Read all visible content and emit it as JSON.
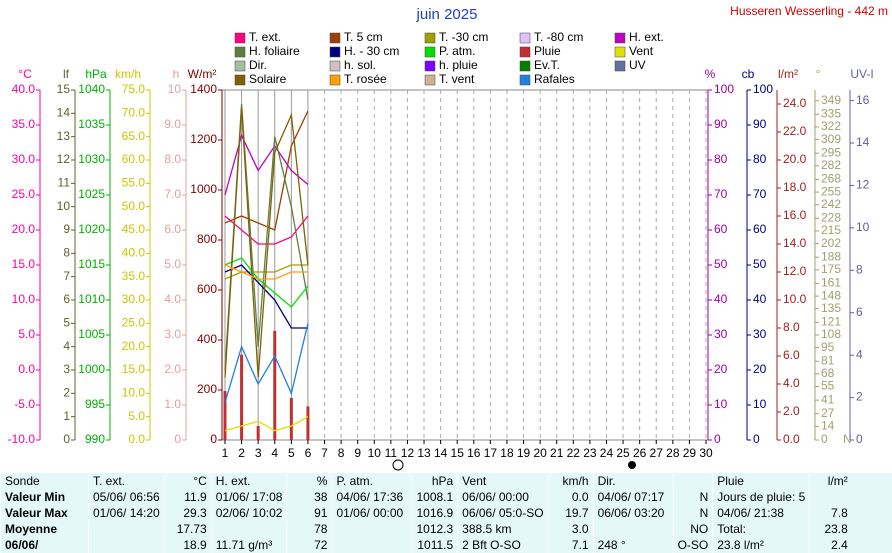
{
  "chart_data": {
    "type": "line",
    "title": "juin 2025",
    "subtitle": "Husseren Wesserling - 442 m",
    "x": [
      1,
      2,
      3,
      4,
      5,
      6
    ],
    "xlim": [
      1,
      30
    ],
    "xticks": [
      1,
      2,
      3,
      4,
      5,
      6,
      7,
      8,
      9,
      10,
      11,
      12,
      13,
      14,
      15,
      16,
      17,
      18,
      19,
      20,
      21,
      22,
      23,
      24,
      25,
      26,
      27,
      28,
      29,
      30
    ],
    "axes": [
      {
        "label": "°C",
        "color": "#ff00a0",
        "lim": [
          -10,
          40
        ],
        "ticks": [
          {
            "value": -10,
            "label": "-10.0"
          },
          {
            "value": -5,
            "label": "-5.0"
          },
          {
            "value": 0,
            "label": "0.0"
          },
          {
            "value": 5,
            "label": "5.0"
          },
          {
            "value": 10,
            "label": "10.0"
          },
          {
            "value": 15,
            "label": "15.0"
          },
          {
            "value": 20,
            "label": "20.0"
          },
          {
            "value": 25,
            "label": "25.0"
          },
          {
            "value": 30,
            "label": "30.0"
          },
          {
            "value": 35,
            "label": "35.0"
          },
          {
            "value": 40,
            "label": "40.0"
          }
        ]
      },
      {
        "label": "lf",
        "color": "#606030",
        "lim": [
          0,
          15
        ],
        "ticks": [
          0,
          1,
          2,
          3,
          4,
          5,
          6,
          7,
          8,
          9,
          10,
          11,
          12,
          13,
          14,
          15
        ]
      },
      {
        "label": "hPa",
        "color": "#00b000",
        "lim": [
          990,
          1040
        ],
        "ticks": [
          990,
          995,
          1000,
          1005,
          1010,
          1015,
          1020,
          1025,
          1030,
          1035,
          1040
        ]
      },
      {
        "label": "km/h",
        "color": "#c8c800",
        "lim": [
          0,
          75
        ],
        "ticks": [
          {
            "value": 0,
            "label": "0.0"
          },
          {
            "value": 5,
            "label": "5.0"
          },
          {
            "value": 10,
            "label": "10.0"
          },
          {
            "value": 15,
            "label": "15.0"
          },
          {
            "value": 20,
            "label": "20.0"
          },
          {
            "value": 25,
            "label": "25.0"
          },
          {
            "value": 30,
            "label": "30.0"
          },
          {
            "value": 35,
            "label": "35.0"
          },
          {
            "value": 40,
            "label": "40.0"
          },
          {
            "value": 45,
            "label": "45.0"
          },
          {
            "value": 50,
            "label": "50.0"
          },
          {
            "value": 55,
            "label": "55.0"
          },
          {
            "value": 60,
            "label": "60.0"
          },
          {
            "value": 65,
            "label": "65.0"
          },
          {
            "value": 70,
            "label": "70.0"
          },
          {
            "value": 75,
            "label": "75.0"
          }
        ]
      },
      {
        "label": "h",
        "color": "#e0a0a0",
        "lim": [
          0,
          10
        ],
        "ticks": [
          0,
          {
            "value": 1,
            "label": "1.0"
          },
          {
            "value": 2,
            "label": "2.0"
          },
          {
            "value": 3,
            "label": "3.0"
          },
          {
            "value": 4,
            "label": "4.0"
          },
          {
            "value": 5,
            "label": "5.0"
          },
          {
            "value": 6,
            "label": "6.0"
          },
          {
            "value": 7,
            "label": "7.0"
          },
          {
            "value": 8,
            "label": "8.0"
          },
          {
            "value": 9,
            "label": "9.0"
          },
          10
        ]
      },
      {
        "label": "W/m²",
        "color": "#800000",
        "lim": [
          0,
          1400
        ],
        "ticks": [
          0,
          200,
          400,
          600,
          800,
          1000,
          1200,
          1400
        ]
      },
      {
        "label": "%",
        "color": "#a000a0",
        "lim": [
          0,
          100
        ],
        "ticks": [
          0,
          10,
          20,
          30,
          40,
          50,
          60,
          70,
          80,
          90,
          100
        ]
      },
      {
        "label": "cb",
        "color": "#000080",
        "lim": [
          0,
          100
        ],
        "ticks": [
          0,
          10,
          20,
          30,
          40,
          50,
          60,
          70,
          80,
          90,
          100
        ]
      },
      {
        "label": "l/m²",
        "color": "#a02020",
        "lim": [
          0,
          25
        ],
        "ticks": [
          {
            "value": 0,
            "label": "0.0"
          },
          {
            "value": 2,
            "label": "2.0"
          },
          {
            "value": 4,
            "label": "4.0"
          },
          {
            "value": 6,
            "label": "6.0"
          },
          {
            "value": 8,
            "label": "8.0"
          },
          {
            "value": 10,
            "label": "10.0"
          },
          {
            "value": 12,
            "label": "12.0"
          },
          {
            "value": 14,
            "label": "14.0"
          },
          {
            "value": 16,
            "label": "16.0"
          },
          {
            "value": 18,
            "label": "18.0"
          },
          {
            "value": 20,
            "label": "20.0"
          },
          {
            "value": 22,
            "label": "22.0"
          },
          {
            "value": 24,
            "label": "24.0"
          }
        ]
      },
      {
        "label": "°",
        "color": "#a0a070",
        "lim": [
          0,
          360
        ],
        "zero_label": "N",
        "ticks": [
          0,
          14,
          27,
          41,
          55,
          68,
          81,
          95,
          108,
          121,
          135,
          148,
          161,
          175,
          188,
          202,
          215,
          228,
          242,
          255,
          268,
          282,
          295,
          309,
          322,
          335,
          349
        ]
      },
      {
        "label": "UV-I",
        "color": "#6060a0",
        "lim": [
          0,
          16.5
        ],
        "ticks": [
          0,
          2,
          4,
          6,
          8,
          10,
          12,
          14,
          16
        ]
      }
    ],
    "series": [
      {
        "name": "T. ext.",
        "color": "#ff0080",
        "axis": 0,
        "values": [
          22,
          20,
          18,
          18,
          19,
          22
        ]
      },
      {
        "name": "T. 5 cm",
        "color": "#a04000",
        "axis": 0,
        "values": [
          21,
          22,
          21,
          20,
          32,
          37
        ]
      },
      {
        "name": "T. -30 cm",
        "color": "#a0a000",
        "axis": 0,
        "values": [
          13,
          14,
          14,
          14,
          15,
          15
        ]
      },
      {
        "name": "T. -80 cm",
        "color": "#e0c0ff"
      },
      {
        "name": "H. ext.",
        "color": "#c000c0",
        "axis": 6,
        "values": [
          70,
          87,
          77,
          84,
          77,
          73
        ]
      },
      {
        "name": "H. foliaire",
        "color": "#608040",
        "axis": 1,
        "values": [
          3,
          14.4,
          4,
          13,
          10,
          6
        ]
      },
      {
        "name": "H. - 30 cm",
        "color": "#000080",
        "axis": 7,
        "values": [
          48,
          50,
          45,
          40,
          32,
          32
        ]
      },
      {
        "name": "P. atm.",
        "color": "#00e000",
        "axis": 2,
        "values": [
          1015,
          1016,
          1013,
          1011,
          1009,
          1012
        ]
      },
      {
        "name": "Pluie",
        "color": "#c03030",
        "axis": 8,
        "type": "bar",
        "values": [
          3.5,
          6.1,
          1.0,
          7.8,
          3.0,
          2.4
        ]
      },
      {
        "name": "Vent",
        "color": "#e0e000",
        "axis": 3,
        "values": [
          2,
          3,
          4,
          2,
          3,
          5
        ]
      },
      {
        "name": "Dir.",
        "color": "#a0c0a0"
      },
      {
        "name": "h. sol.",
        "color": "#d0c0c0"
      },
      {
        "name": "h. pluie",
        "color": "#8000ff"
      },
      {
        "name": "Ev.T.",
        "color": "#008000"
      },
      {
        "name": "UV",
        "color": "#6070a0"
      },
      {
        "name": "Solaire",
        "color": "#806000",
        "axis": 5,
        "values": [
          250,
          1330,
          250,
          1150,
          1300,
          700
        ]
      },
      {
        "name": "T. rosée",
        "color": "#ffa000",
        "axis": 0,
        "values": [
          15,
          14,
          13,
          13,
          14,
          14
        ]
      },
      {
        "name": "T. vent",
        "color": "#d0b090"
      },
      {
        "name": "Rafales",
        "color": "#2080e0",
        "axis": 3,
        "values": [
          8,
          20,
          12,
          18,
          10,
          25
        ]
      }
    ]
  },
  "table": {
    "header": [
      "Sonde",
      "T. ext.",
      "°C",
      "H. ext.",
      "%",
      "P. atm.",
      "hPa",
      "Vent",
      "km/h",
      "Dir.",
      null,
      "Pluie",
      "l/m²"
    ],
    "rows": [
      [
        "Valeur Min",
        "05/06/ 06:56",
        "11.9",
        "01/06/ 17:08",
        "38",
        "04/06/ 17:36",
        "1008.1",
        "06/06/ 00:00",
        "0.0",
        "04/06/ 07:17",
        "N",
        "Jours de pluie: 5",
        null
      ],
      [
        "Valeur Max",
        "01/06/ 14:20",
        "29.3",
        "02/06/ 10:02",
        "91",
        "01/06/ 00:00",
        "1016.9",
        "06/06/ 05:0-SO",
        "19.7",
        "06/06/ 03:20",
        "N",
        "04/06/ 21:38",
        "7.8"
      ],
      [
        "Moyenne",
        null,
        "17.73",
        null,
        "78",
        null,
        "1012.3",
        "388.5 km",
        "3.0",
        null,
        "NO",
        "Total:",
        "23.8"
      ],
      [
        "06/06/",
        null,
        "18.9",
        "11.71 g/m³",
        "72",
        null,
        "1011.5",
        "2 Bft O-SO",
        "7.1",
        "248 °",
        "O-SO",
        "23.8 l/m²",
        "2.4"
      ]
    ]
  }
}
